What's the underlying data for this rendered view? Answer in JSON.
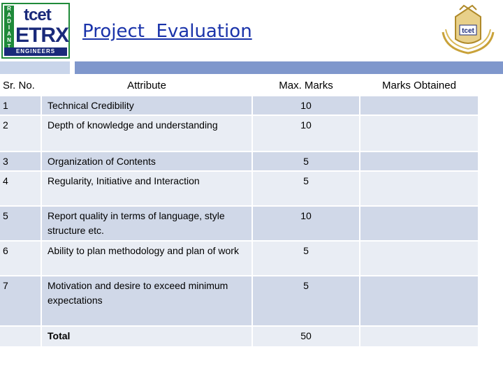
{
  "header": {
    "title": "Project  Evaluation",
    "logo_left": {
      "radiant_letters": [
        "R",
        "A",
        "D",
        "I",
        "A",
        "N",
        "T"
      ],
      "brand_top": "tcet",
      "brand_main": "ETRX",
      "brand_bottom": "ENGINEERS"
    },
    "logo_right": {
      "brand": "tcet"
    }
  },
  "table": {
    "headers": {
      "sr_no": "Sr. No.",
      "attribute": "Attribute",
      "max_marks": "Max. Marks",
      "marks_obtained": "Marks Obtained"
    },
    "rows": [
      {
        "sr": "1",
        "attribute": "Technical Credibility",
        "max": "10",
        "obtained": ""
      },
      {
        "sr": "2",
        "attribute": "Depth of knowledge and understanding",
        "max": "10",
        "obtained": ""
      },
      {
        "sr": "3",
        "attribute": "Organization of Contents",
        "max": "5",
        "obtained": ""
      },
      {
        "sr": "4",
        "attribute": "Regularity, Initiative and Interaction",
        "max": "5",
        "obtained": ""
      },
      {
        "sr": "5",
        "attribute": "Report quality in terms of language, style structure etc.",
        "max": "10",
        "obtained": ""
      },
      {
        "sr": "6",
        "attribute": "Ability to plan methodology and plan of work",
        "max": "5",
        "obtained": ""
      },
      {
        "sr": "7",
        "attribute": "Motivation and desire to exceed minimum expectations",
        "max": "5",
        "obtained": ""
      }
    ],
    "total": {
      "label": "Total",
      "max": "50",
      "obtained": ""
    }
  },
  "colors": {
    "title": "#1a33aa",
    "header_bar": "#7f97cc",
    "row_dark": "#d0d8e8",
    "row_light": "#e9edf4",
    "logo_green": "#1f8a3a",
    "logo_navy": "#1a2a7a"
  }
}
